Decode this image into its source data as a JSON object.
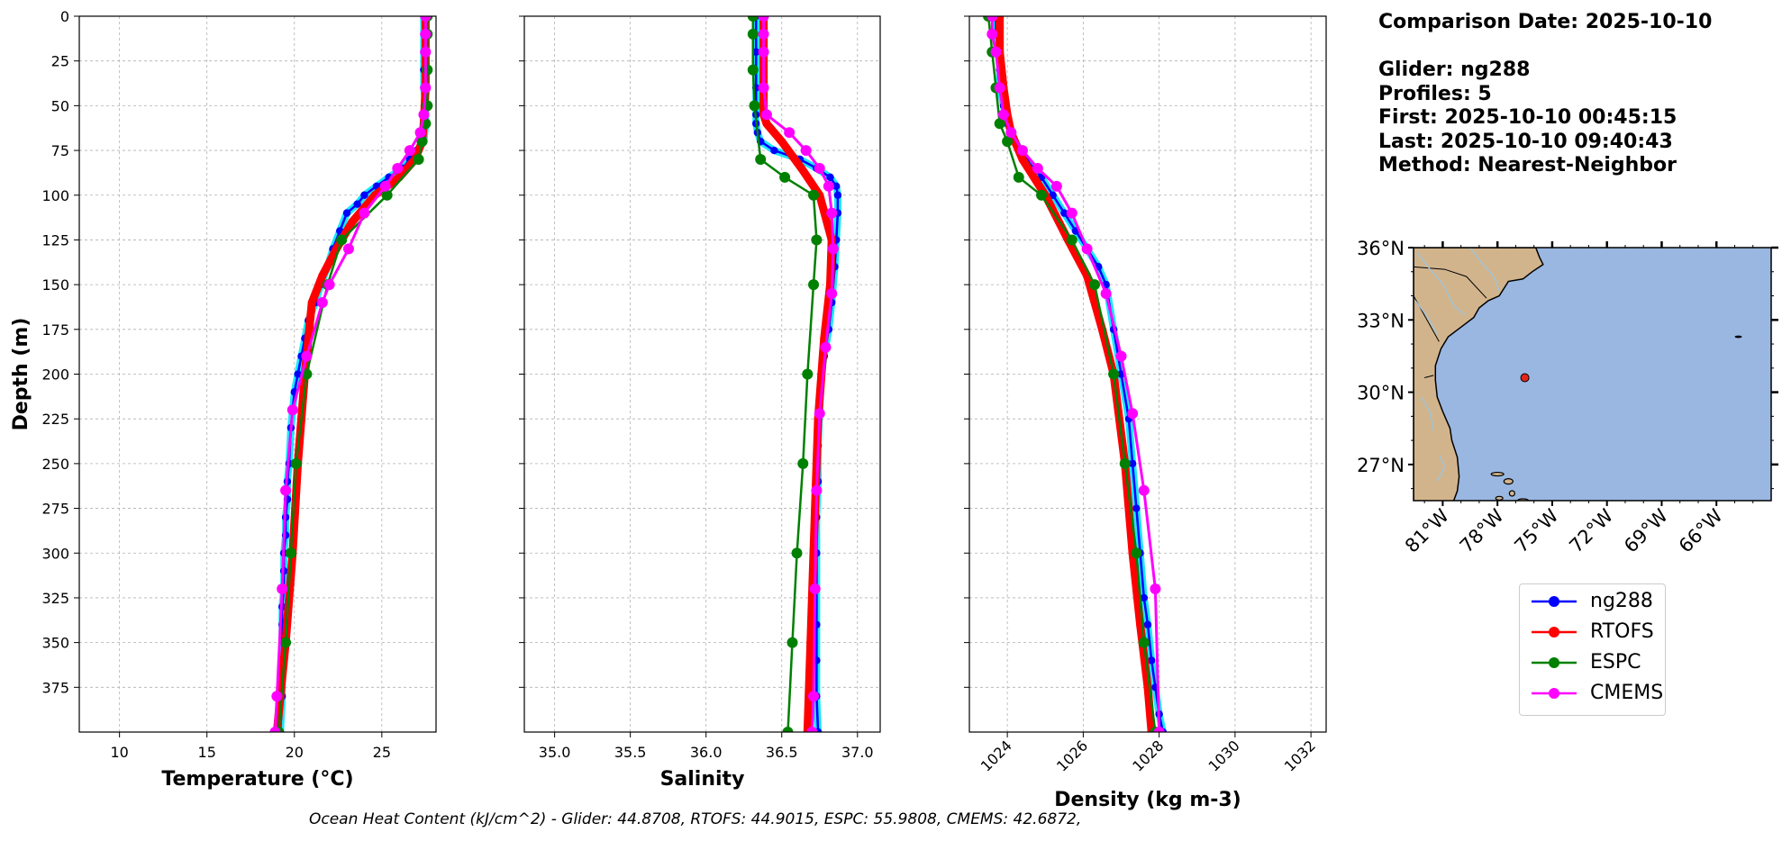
{
  "info": {
    "comparison": "Comparison Date: 2025-10-10",
    "glider": "Glider: ng288",
    "profiles": "Profiles: 5",
    "first": "First: 2025-10-10 00:45:15",
    "last": "Last: 2025-10-10 09:40:43",
    "method": "Method: Nearest-Neighbor"
  },
  "footer": "Ocean Heat Content (kJ/cm^2) - Glider: 44.8708,  RTOFS: 44.9015,  ESPC: 55.9808,  CMEMS: 42.6872,",
  "colors": {
    "ng288": "#0000ff",
    "ng288_edge": "#00e5ff",
    "RTOFS": "#ff0000",
    "ESPC": "#008000",
    "CMEMS": "#ff00ff",
    "land": "#d2b48c",
    "ocean": "#99b7e1",
    "rivers": "#9ec4d8",
    "marker": "#e32619"
  },
  "legend": [
    {
      "name": "ng288",
      "color": "#0000ff"
    },
    {
      "name": "RTOFS",
      "color": "#ff0000"
    },
    {
      "name": "ESPC",
      "color": "#008000"
    },
    {
      "name": "CMEMS",
      "color": "#ff00ff"
    }
  ],
  "chart_data": [
    {
      "type": "line",
      "xlabel": "Temperature (°C)",
      "ylabel": "Depth (m)",
      "xlim": [
        7.7,
        28.1
      ],
      "ylim": [
        400,
        0
      ],
      "xticks": [
        "10",
        "15",
        "20",
        "25"
      ],
      "xtick_values": [
        10,
        15,
        20,
        25
      ],
      "yticks": [
        "0",
        "25",
        "50",
        "75",
        "100",
        "125",
        "150",
        "175",
        "200",
        "225",
        "250",
        "275",
        "300",
        "325",
        "350",
        "375"
      ],
      "grid": true,
      "series": [
        {
          "name": "ng288",
          "x": [
            27.4,
            27.4,
            27.4,
            27.4,
            27.4,
            27.5,
            27.5,
            27.4,
            27.0,
            26.6,
            26.2,
            25.4,
            24.7,
            24.0,
            23.6,
            23.0,
            22.6,
            22.2,
            21.9,
            21.5,
            21.2,
            20.8,
            20.6,
            20.4,
            20.2,
            20.0,
            19.9,
            19.8,
            19.7,
            19.6,
            19.6,
            19.5,
            19.5,
            19.4,
            19.4,
            19.4,
            19.3,
            19.3,
            19.3,
            19.3,
            19.2
          ],
          "y": [
            0,
            10,
            20,
            30,
            40,
            50,
            60,
            70,
            75,
            80,
            85,
            90,
            95,
            100,
            105,
            110,
            120,
            130,
            140,
            150,
            160,
            170,
            180,
            190,
            200,
            210,
            220,
            230,
            250,
            260,
            270,
            280,
            290,
            300,
            310,
            320,
            330,
            340,
            360,
            380,
            400
          ]
        },
        {
          "name": "RTOFS",
          "x": [
            27.5,
            27.5,
            27.5,
            27.4,
            27.3,
            26.9,
            26.0,
            24.6,
            23.3,
            22.4,
            21.6,
            21.0,
            20.8,
            20.6,
            20.4,
            20.2,
            19.9,
            19.5,
            19.2,
            19.0
          ],
          "y": [
            0,
            20,
            40,
            60,
            70,
            80,
            90,
            100,
            115,
            130,
            145,
            160,
            180,
            200,
            225,
            250,
            300,
            350,
            380,
            400
          ]
        },
        {
          "name": "ESPC",
          "x": [
            27.6,
            27.6,
            27.6,
            27.6,
            27.5,
            27.3,
            27.1,
            25.3,
            22.7,
            21.9,
            20.7,
            20.1,
            19.8,
            19.5,
            19.1
          ],
          "y": [
            0,
            10,
            30,
            50,
            60,
            70,
            80,
            100,
            125,
            150,
            200,
            250,
            300,
            350,
            400
          ]
        },
        {
          "name": "CMEMS",
          "x": [
            27.5,
            27.5,
            27.5,
            27.5,
            27.4,
            27.2,
            26.6,
            25.9,
            25.2,
            24.0,
            23.1,
            22.0,
            21.6,
            20.7,
            19.9,
            19.5,
            19.3,
            19.0,
            18.9
          ],
          "y": [
            0,
            10,
            20,
            40,
            55,
            65,
            75,
            85,
            95,
            110,
            130,
            150,
            160,
            190,
            220,
            265,
            320,
            380,
            400
          ]
        }
      ]
    },
    {
      "type": "line",
      "xlabel": "Salinity",
      "xlim": [
        34.8,
        37.15
      ],
      "ylim": [
        400,
        0
      ],
      "xticks": [
        "35.0",
        "35.5",
        "36.0",
        "36.5",
        "37.0"
      ],
      "xtick_values": [
        35.0,
        35.5,
        36.0,
        36.5,
        37.0
      ],
      "grid": true,
      "series": [
        {
          "name": "ng288",
          "x": [
            36.33,
            36.33,
            36.33,
            36.33,
            36.33,
            36.34,
            36.36,
            36.45,
            36.62,
            36.73,
            36.82,
            36.86,
            36.87,
            36.87,
            36.86,
            36.85,
            36.83,
            36.81,
            36.78,
            36.76,
            36.75,
            36.74,
            36.74,
            36.73,
            36.73,
            36.73,
            36.73,
            36.73,
            36.73,
            36.74
          ],
          "y": [
            0,
            20,
            40,
            55,
            60,
            65,
            70,
            75,
            80,
            85,
            90,
            95,
            100,
            110,
            125,
            140,
            160,
            175,
            190,
            200,
            220,
            240,
            260,
            280,
            300,
            320,
            340,
            360,
            380,
            400
          ]
        },
        {
          "name": "RTOFS",
          "x": [
            36.38,
            36.38,
            36.38,
            36.38,
            36.4,
            36.5,
            36.63,
            36.75,
            36.83,
            36.82,
            36.78,
            36.74,
            36.71,
            36.69,
            36.67
          ],
          "y": [
            0,
            20,
            40,
            55,
            60,
            70,
            85,
            100,
            125,
            150,
            180,
            225,
            300,
            350,
            400
          ]
        },
        {
          "name": "ESPC",
          "x": [
            36.31,
            36.31,
            36.31,
            36.32,
            36.36,
            36.52,
            36.71,
            36.73,
            36.71,
            36.67,
            36.64,
            36.6,
            36.57,
            36.54
          ],
          "y": [
            0,
            10,
            30,
            50,
            80,
            90,
            100,
            125,
            150,
            200,
            250,
            300,
            350,
            400
          ]
        },
        {
          "name": "CMEMS",
          "x": [
            36.38,
            36.38,
            36.38,
            36.38,
            36.4,
            36.55,
            36.66,
            36.75,
            36.81,
            36.83,
            36.84,
            36.83,
            36.79,
            36.75,
            36.73,
            36.72,
            36.71,
            36.7
          ],
          "y": [
            0,
            10,
            20,
            40,
            55,
            65,
            75,
            85,
            95,
            110,
            130,
            155,
            185,
            222,
            265,
            320,
            380,
            400
          ]
        }
      ]
    },
    {
      "type": "line",
      "xlabel": "Density (kg m-3)",
      "xlim": [
        1023.0,
        1032.4
      ],
      "ylim": [
        400,
        0
      ],
      "xticks": [
        "1024",
        "1026",
        "1028",
        "1030",
        "1032"
      ],
      "xtick_values": [
        1024,
        1026,
        1028,
        1030,
        1032
      ],
      "grid": true,
      "series": [
        {
          "name": "ng288",
          "x": [
            1023.7,
            1023.7,
            1023.8,
            1023.8,
            1023.8,
            1023.9,
            1024.0,
            1024.2,
            1024.5,
            1024.9,
            1025.2,
            1025.5,
            1025.8,
            1026.1,
            1026.4,
            1026.6,
            1026.8,
            1027.0,
            1027.2,
            1027.3,
            1027.4,
            1027.5,
            1027.6,
            1027.7,
            1027.8,
            1027.9,
            1028.0,
            1028.1
          ],
          "y": [
            0,
            10,
            20,
            30,
            40,
            50,
            60,
            70,
            80,
            90,
            100,
            110,
            120,
            130,
            140,
            150,
            175,
            200,
            225,
            250,
            275,
            300,
            325,
            340,
            360,
            375,
            390,
            400
          ]
        },
        {
          "name": "RTOFS",
          "x": [
            1023.8,
            1023.8,
            1023.9,
            1024.0,
            1024.1,
            1024.4,
            1025.0,
            1025.6,
            1026.1,
            1026.5,
            1026.8,
            1027.1,
            1027.3,
            1027.5,
            1027.7,
            1027.8
          ],
          "y": [
            0,
            20,
            40,
            55,
            65,
            80,
            100,
            125,
            145,
            175,
            200,
            250,
            300,
            340,
            375,
            400
          ]
        },
        {
          "name": "ESPC",
          "x": [
            1023.5,
            1023.6,
            1023.7,
            1023.8,
            1024.0,
            1024.3,
            1024.9,
            1025.7,
            1026.3,
            1026.8,
            1027.1,
            1027.4,
            1027.6,
            1027.9
          ],
          "y": [
            0,
            20,
            40,
            60,
            70,
            90,
            100,
            125,
            150,
            200,
            250,
            300,
            350,
            400
          ]
        },
        {
          "name": "CMEMS",
          "x": [
            1023.6,
            1023.6,
            1023.7,
            1023.8,
            1023.9,
            1024.1,
            1024.4,
            1024.8,
            1025.3,
            1025.7,
            1026.1,
            1026.6,
            1027.0,
            1027.3,
            1027.6,
            1027.9,
            1028.0
          ],
          "y": [
            0,
            10,
            20,
            40,
            55,
            65,
            75,
            85,
            95,
            110,
            130,
            155,
            190,
            222,
            265,
            320,
            400
          ]
        }
      ]
    },
    {
      "type": "map",
      "lat_ticks": [
        "36°N",
        "33°N",
        "30°N",
        "27°N"
      ],
      "lon_ticks": [
        "81°W",
        "78°W",
        "75°W",
        "72°W",
        "69°W",
        "66°W"
      ],
      "lon_range": [
        -82.6,
        -63.0
      ],
      "lat_range": [
        25.5,
        36.0
      ],
      "glider_position": {
        "lon": -76.5,
        "lat": 30.6
      }
    }
  ]
}
